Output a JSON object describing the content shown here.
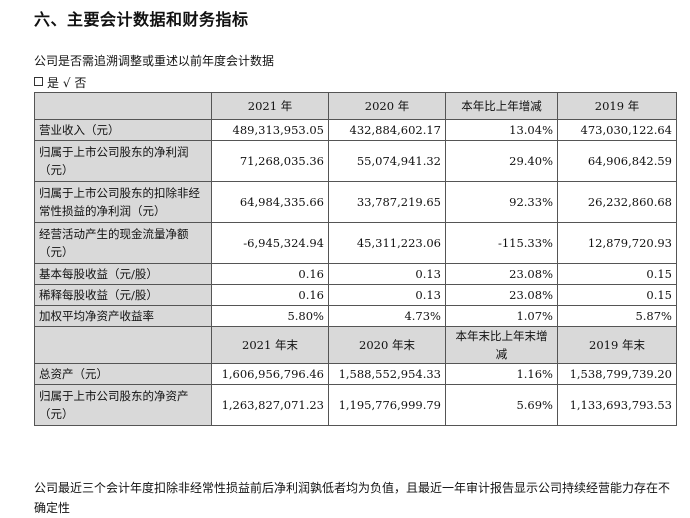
{
  "heading": "六、主要会计数据和财务指标",
  "note1": "公司是否需追溯调整或重述以前年度会计数据",
  "note2": {
    "yes": "是",
    "check": "√",
    "no": "否"
  },
  "header1": [
    "",
    "2021 年",
    "2020 年",
    "本年比上年增减",
    "2019 年"
  ],
  "rows1": [
    {
      "label": "营业收入（元）",
      "v2021": "489,313,953.05",
      "v2020": "432,884,602.17",
      "change": "13.04%",
      "v2019": "473,030,122.64"
    },
    {
      "label": "归属于上市公司股东的净利润（元）",
      "v2021": "71,268,035.36",
      "v2020": "55,074,941.32",
      "change": "29.40%",
      "v2019": "64,906,842.59"
    },
    {
      "label": "归属于上市公司股东的扣除非经常性损益的净利润（元）",
      "v2021": "64,984,335.66",
      "v2020": "33,787,219.65",
      "change": "92.33%",
      "v2019": "26,232,860.68"
    },
    {
      "label": "经营活动产生的现金流量净额（元）",
      "v2021": "-6,945,324.94",
      "v2020": "45,311,223.06",
      "change": "-115.33%",
      "v2019": "12,879,720.93"
    },
    {
      "label": "基本每股收益（元/股）",
      "v2021": "0.16",
      "v2020": "0.13",
      "change": "23.08%",
      "v2019": "0.15"
    },
    {
      "label": "稀释每股收益（元/股）",
      "v2021": "0.16",
      "v2020": "0.13",
      "change": "23.08%",
      "v2019": "0.15"
    },
    {
      "label": "加权平均净资产收益率",
      "v2021": "5.80%",
      "v2020": "4.73%",
      "change": "1.07%",
      "v2019": "5.87%"
    }
  ],
  "header2": [
    "",
    "2021 年末",
    "2020 年末",
    "本年末比上年末增减",
    "2019 年末"
  ],
  "rows2": [
    {
      "label": "总资产（元）",
      "v2021": "1,606,956,796.46",
      "v2020": "1,588,552,954.33",
      "change": "1.16%",
      "v2019": "1,538,799,739.20"
    },
    {
      "label": "归属于上市公司股东的净资产（元）",
      "v2021": "1,263,827,071.23",
      "v2020": "1,195,776,999.79",
      "change": "5.69%",
      "v2019": "1,133,693,793.53"
    }
  ],
  "footer": "公司最近三个会计年度扣除非经常性损益前后净利润孰低者均为负值，且最近一年审计报告显示公司持续经营能力存在不确定性"
}
